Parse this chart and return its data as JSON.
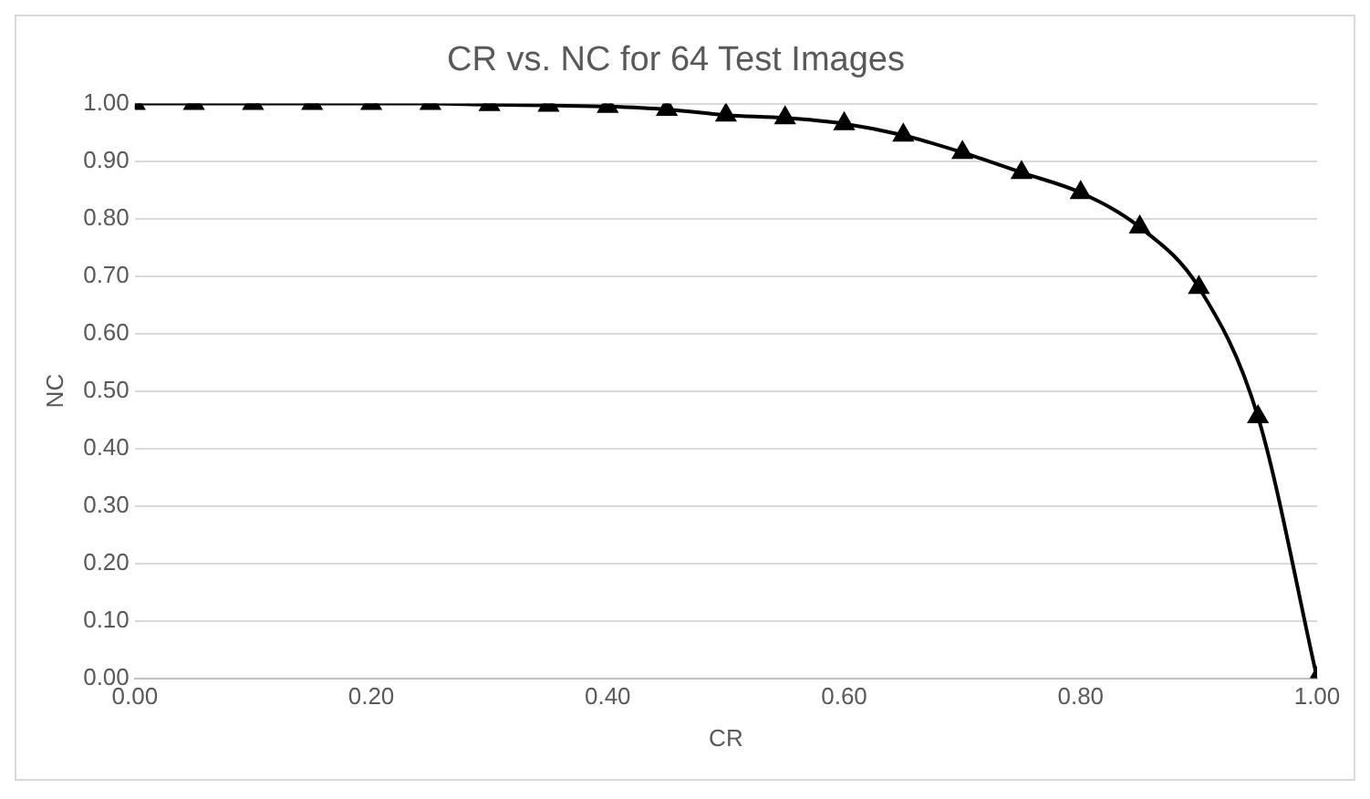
{
  "chart_data": {
    "type": "line",
    "title": "CR vs. NC for 64 Test Images",
    "xlabel": "CR",
    "ylabel": "NC",
    "x": [
      0,
      0.05,
      0.1,
      0.15,
      0.2,
      0.25,
      0.3,
      0.35,
      0.4,
      0.45,
      0.5,
      0.55,
      0.6,
      0.65,
      0.7,
      0.75,
      0.8,
      0.85,
      0.9,
      0.95,
      1.0
    ],
    "series": [
      {
        "color": "#000000",
        "values": [
          1,
          1,
          1,
          1,
          1,
          1,
          0.998,
          0.997,
          0.995,
          0.99,
          0.98,
          0.975,
          0.965,
          0.945,
          0.915,
          0.88,
          0.845,
          0.785,
          0.68,
          0.455,
          0
        ]
      }
    ],
    "xlim": [
      0,
      1
    ],
    "xticks": [
      {
        "value": 0,
        "label": "0.00"
      },
      {
        "value": 0.2,
        "label": "0.20"
      },
      {
        "value": 0.4,
        "label": "0.40"
      },
      {
        "value": 0.6,
        "label": "0.60"
      },
      {
        "value": 0.8,
        "label": "0.80"
      },
      {
        "value": 1,
        "label": "1.00"
      }
    ],
    "ylim": [
      0,
      1
    ],
    "yticks": [
      {
        "value": 0,
        "label": "0.00"
      },
      {
        "value": 0.1,
        "label": "0.10"
      },
      {
        "value": 0.2,
        "label": "0.20"
      },
      {
        "value": 0.3,
        "label": "0.30"
      },
      {
        "value": 0.4,
        "label": "0.40"
      },
      {
        "value": 0.5,
        "label": "0.50"
      },
      {
        "value": 0.6,
        "label": "0.60"
      },
      {
        "value": 0.7,
        "label": "0.70"
      },
      {
        "value": 0.8,
        "label": "0.80"
      },
      {
        "value": 0.9,
        "label": "0.90"
      },
      {
        "value": 1,
        "label": "1.00"
      }
    ],
    "grid": "y",
    "marker": "triangle",
    "line_style": "solid",
    "legend": false
  }
}
